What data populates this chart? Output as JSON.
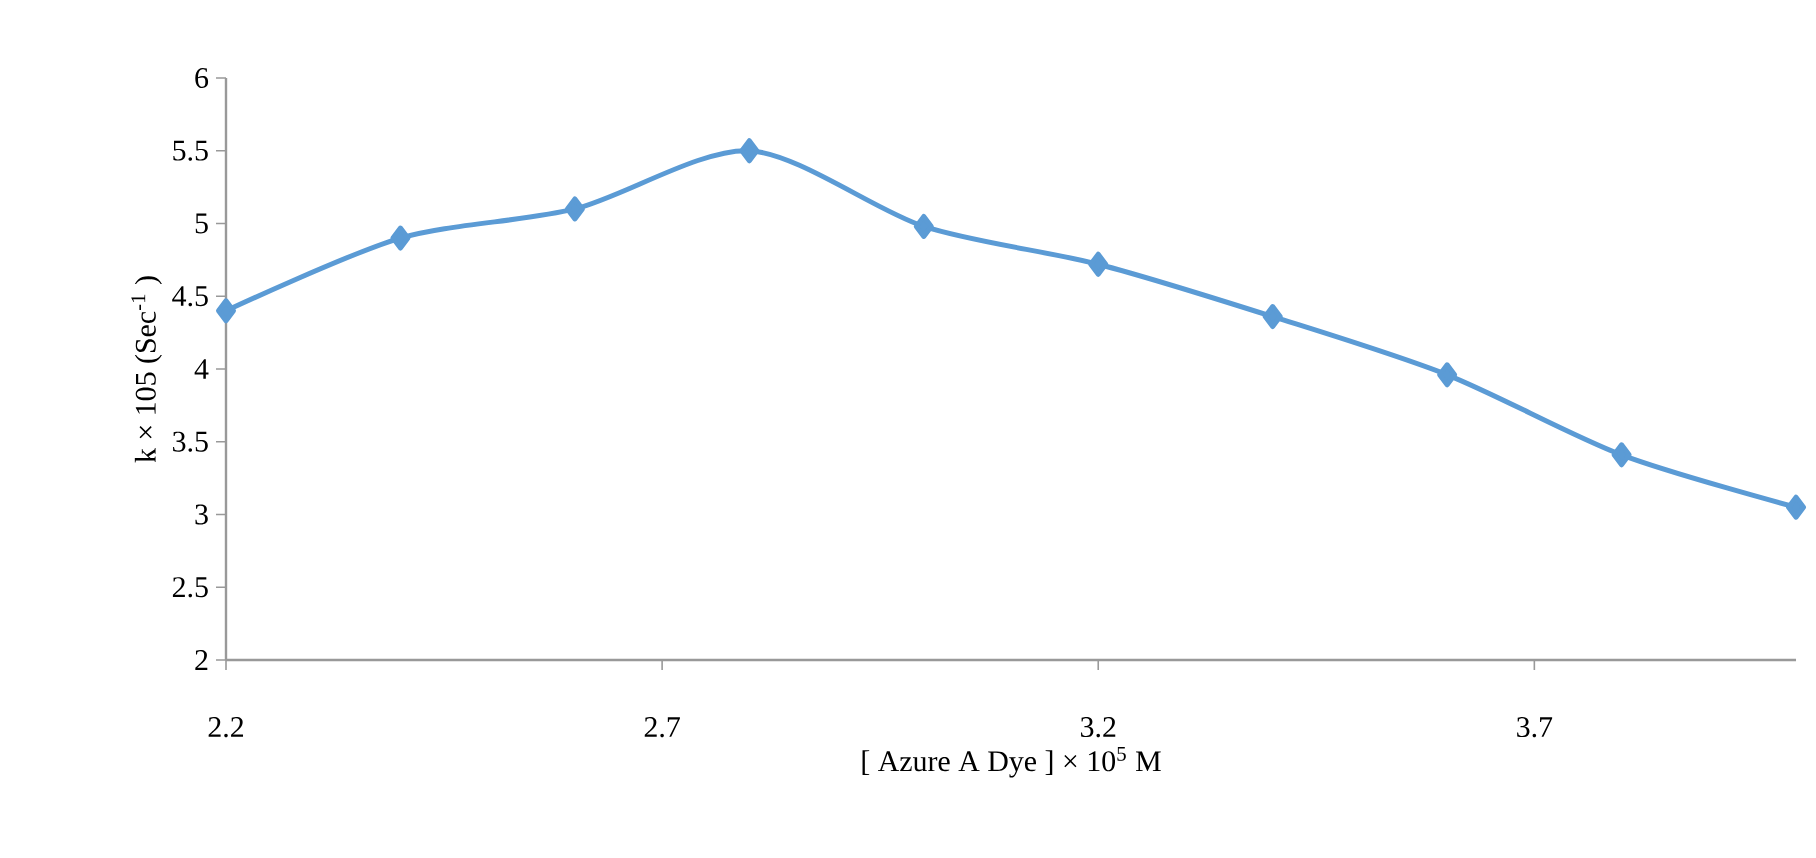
{
  "chart_data": {
    "type": "line",
    "xlabel": "[ Azure A Dye  ] × 10$^{5}$  M",
    "ylabel": "k × 105 (Sec$^{-1}$ )",
    "x": [
      2.2,
      2.4,
      2.6,
      2.8,
      3.0,
      3.2,
      3.4,
      3.6,
      3.8,
      4.0
    ],
    "series": [
      {
        "color": "#5b9bd5",
        "values": [
          4.4,
          4.9,
          5.1,
          5.5,
          4.98,
          4.72,
          4.36,
          3.96,
          3.41,
          3.05
        ]
      }
    ],
    "xlim": [
      2.2,
      4.0
    ],
    "xticks": [
      2.2,
      2.7,
      3.2,
      3.7
    ],
    "ylim": [
      2,
      6
    ],
    "yticks": [
      2,
      2.5,
      3,
      3.5,
      4,
      4.5,
      5,
      5.5,
      6
    ],
    "marker": "diamond",
    "line_style": "solid"
  }
}
